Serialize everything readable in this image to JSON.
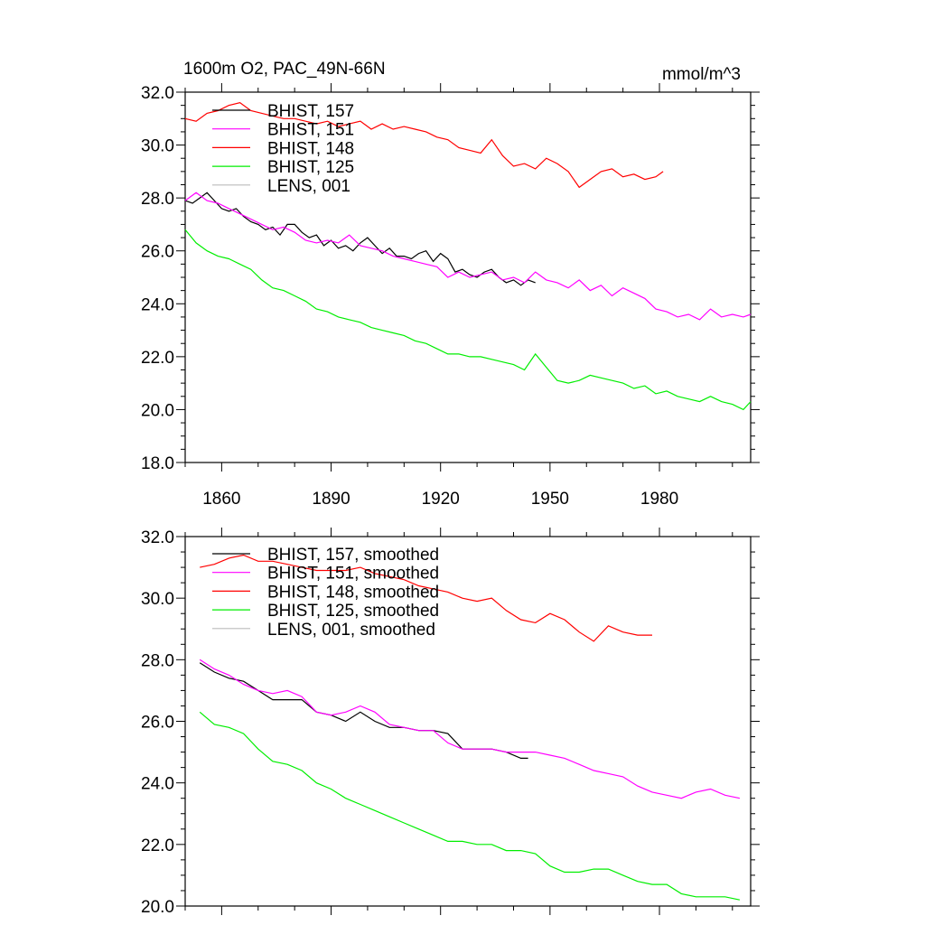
{
  "header": {
    "title_left": "1600m O2, PAC_49N-66N",
    "title_right": "mmol/m^3"
  },
  "chart_data": [
    {
      "type": "line",
      "panel": "raw",
      "xlim": [
        1850,
        2005
      ],
      "ylim": [
        18.0,
        32.0
      ],
      "x_ticks": [
        1860,
        1890,
        1920,
        1950,
        1980
      ],
      "x_tick_labels": [
        "1860",
        "1890",
        "1920",
        "1950",
        "1980"
      ],
      "y_ticks": [
        18.0,
        20.0,
        22.0,
        24.0,
        26.0,
        28.0,
        30.0,
        32.0
      ],
      "y_tick_labels": [
        "18.0",
        "20.0",
        "22.0",
        "24.0",
        "26.0",
        "28.0",
        "30.0",
        "32.0"
      ],
      "legend_position": "top-left",
      "series": [
        {
          "name": "BHIST, 157",
          "color": "#000000",
          "x": [
            1850,
            1852,
            1854,
            1856,
            1858,
            1860,
            1862,
            1864,
            1866,
            1868,
            1870,
            1872,
            1874,
            1876,
            1878,
            1880,
            1882,
            1884,
            1886,
            1888,
            1890,
            1892,
            1894,
            1896,
            1898,
            1900,
            1902,
            1904,
            1906,
            1908,
            1910,
            1912,
            1914,
            1916,
            1918,
            1920,
            1922,
            1924,
            1926,
            1928,
            1930,
            1932,
            1934,
            1936,
            1938,
            1940,
            1942,
            1944,
            1946
          ],
          "values": [
            27.9,
            27.8,
            28.0,
            28.2,
            27.9,
            27.6,
            27.5,
            27.6,
            27.3,
            27.1,
            27.0,
            26.8,
            26.9,
            26.6,
            27.0,
            27.0,
            26.7,
            26.5,
            26.6,
            26.2,
            26.4,
            26.1,
            26.2,
            26.0,
            26.3,
            26.5,
            26.2,
            25.9,
            26.1,
            25.8,
            25.8,
            25.7,
            25.9,
            26.0,
            25.6,
            25.9,
            25.7,
            25.2,
            25.3,
            25.1,
            25.0,
            25.2,
            25.3,
            25.0,
            24.8,
            24.9,
            24.7,
            24.9,
            24.8
          ]
        },
        {
          "name": "BHIST, 151",
          "color": "#ff00ff",
          "x": [
            1850,
            1853,
            1856,
            1859,
            1862,
            1865,
            1868,
            1871,
            1874,
            1877,
            1880,
            1883,
            1886,
            1889,
            1892,
            1895,
            1898,
            1901,
            1904,
            1907,
            1910,
            1913,
            1916,
            1919,
            1922,
            1925,
            1928,
            1931,
            1934,
            1937,
            1940,
            1943,
            1946,
            1949,
            1952,
            1955,
            1958,
            1961,
            1964,
            1967,
            1970,
            1973,
            1976,
            1979,
            1982,
            1985,
            1988,
            1991,
            1994,
            1997,
            2000,
            2003,
            2005
          ],
          "values": [
            27.9,
            28.2,
            27.9,
            27.8,
            27.6,
            27.4,
            27.2,
            27.0,
            26.8,
            26.9,
            26.7,
            26.4,
            26.3,
            26.4,
            26.3,
            26.6,
            26.2,
            26.1,
            26.0,
            25.8,
            25.7,
            25.6,
            25.5,
            25.4,
            25.0,
            25.2,
            25.0,
            25.1,
            25.2,
            24.9,
            25.0,
            24.8,
            25.2,
            24.9,
            24.8,
            24.6,
            24.9,
            24.5,
            24.7,
            24.3,
            24.6,
            24.4,
            24.2,
            23.8,
            23.7,
            23.5,
            23.6,
            23.4,
            23.8,
            23.5,
            23.6,
            23.5,
            23.6
          ]
        },
        {
          "name": "BHIST, 148",
          "color": "#ff0000",
          "x": [
            1850,
            1853,
            1856,
            1859,
            1862,
            1865,
            1868,
            1871,
            1874,
            1877,
            1880,
            1883,
            1886,
            1889,
            1892,
            1895,
            1898,
            1901,
            1904,
            1907,
            1910,
            1913,
            1916,
            1919,
            1922,
            1925,
            1928,
            1931,
            1934,
            1937,
            1940,
            1943,
            1946,
            1949,
            1952,
            1955,
            1958,
            1961,
            1964,
            1967,
            1970,
            1973,
            1976,
            1979,
            1981
          ],
          "values": [
            31.0,
            30.9,
            31.2,
            31.3,
            31.5,
            31.6,
            31.3,
            31.2,
            31.1,
            31.0,
            31.0,
            30.9,
            30.8,
            30.9,
            30.7,
            30.8,
            30.9,
            30.6,
            30.8,
            30.6,
            30.7,
            30.6,
            30.5,
            30.3,
            30.2,
            29.9,
            29.8,
            29.7,
            30.2,
            29.6,
            29.2,
            29.3,
            29.1,
            29.5,
            29.3,
            29.0,
            28.4,
            28.7,
            29.0,
            29.1,
            28.8,
            28.9,
            28.7,
            28.8,
            29.0
          ]
        },
        {
          "name": "BHIST, 125",
          "color": "#00ee00",
          "x": [
            1850,
            1853,
            1856,
            1859,
            1862,
            1865,
            1868,
            1871,
            1874,
            1877,
            1880,
            1883,
            1886,
            1889,
            1892,
            1895,
            1898,
            1901,
            1904,
            1907,
            1910,
            1913,
            1916,
            1919,
            1922,
            1925,
            1928,
            1931,
            1934,
            1937,
            1940,
            1943,
            1946,
            1949,
            1952,
            1955,
            1958,
            1961,
            1964,
            1967,
            1970,
            1973,
            1976,
            1979,
            1982,
            1985,
            1988,
            1991,
            1994,
            1997,
            2000,
            2003,
            2005
          ],
          "values": [
            26.8,
            26.3,
            26.0,
            25.8,
            25.7,
            25.5,
            25.3,
            24.9,
            24.6,
            24.5,
            24.3,
            24.1,
            23.8,
            23.7,
            23.5,
            23.4,
            23.3,
            23.1,
            23.0,
            22.9,
            22.8,
            22.6,
            22.5,
            22.3,
            22.1,
            22.1,
            22.0,
            22.0,
            21.9,
            21.8,
            21.7,
            21.5,
            22.1,
            21.6,
            21.1,
            21.0,
            21.1,
            21.3,
            21.2,
            21.1,
            21.0,
            20.8,
            20.9,
            20.6,
            20.7,
            20.5,
            20.4,
            20.3,
            20.5,
            20.3,
            20.2,
            20.0,
            20.3
          ]
        },
        {
          "name": "LENS, 001",
          "color": "#bbbbbb",
          "x": [],
          "values": []
        }
      ]
    },
    {
      "type": "line",
      "panel": "smoothed",
      "xlim": [
        1850,
        2005
      ],
      "ylim": [
        20.0,
        32.0
      ],
      "x_ticks": [
        1860,
        1890,
        1920,
        1950,
        1980
      ],
      "x_tick_labels": [],
      "y_ticks": [
        20.0,
        22.0,
        24.0,
        26.0,
        28.0,
        30.0,
        32.0
      ],
      "y_tick_labels": [
        "20.0",
        "22.0",
        "24.0",
        "26.0",
        "28.0",
        "30.0",
        "32.0"
      ],
      "legend_position": "top-left",
      "series": [
        {
          "name": "BHIST, 157, smoothed",
          "color": "#000000",
          "x": [
            1854,
            1858,
            1862,
            1866,
            1870,
            1874,
            1878,
            1882,
            1886,
            1890,
            1894,
            1898,
            1902,
            1906,
            1910,
            1914,
            1918,
            1922,
            1926,
            1930,
            1934,
            1938,
            1942,
            1944
          ],
          "values": [
            27.9,
            27.6,
            27.4,
            27.3,
            27.0,
            26.7,
            26.7,
            26.7,
            26.3,
            26.2,
            26.0,
            26.3,
            26.0,
            25.8,
            25.8,
            25.7,
            25.7,
            25.6,
            25.1,
            25.1,
            25.1,
            25.0,
            24.8,
            24.8
          ]
        },
        {
          "name": "BHIST, 151, smoothed",
          "color": "#ff00ff",
          "x": [
            1854,
            1858,
            1862,
            1866,
            1870,
            1874,
            1878,
            1882,
            1886,
            1890,
            1894,
            1898,
            1902,
            1906,
            1910,
            1914,
            1918,
            1922,
            1926,
            1930,
            1934,
            1938,
            1942,
            1946,
            1950,
            1954,
            1958,
            1962,
            1966,
            1970,
            1974,
            1978,
            1982,
            1986,
            1990,
            1994,
            1998,
            2002
          ],
          "values": [
            28.0,
            27.7,
            27.5,
            27.2,
            27.0,
            26.9,
            27.0,
            26.8,
            26.3,
            26.2,
            26.3,
            26.5,
            26.3,
            25.9,
            25.8,
            25.7,
            25.7,
            25.3,
            25.1,
            25.1,
            25.1,
            25.0,
            25.0,
            25.0,
            24.9,
            24.8,
            24.6,
            24.4,
            24.3,
            24.2,
            23.9,
            23.7,
            23.6,
            23.5,
            23.7,
            23.8,
            23.6,
            23.5
          ]
        },
        {
          "name": "BHIST, 148, smoothed",
          "color": "#ff0000",
          "x": [
            1854,
            1858,
            1862,
            1866,
            1870,
            1874,
            1878,
            1882,
            1886,
            1890,
            1894,
            1898,
            1902,
            1906,
            1910,
            1914,
            1918,
            1922,
            1926,
            1930,
            1934,
            1938,
            1942,
            1946,
            1950,
            1954,
            1958,
            1962,
            1966,
            1970,
            1974,
            1978
          ],
          "values": [
            31.0,
            31.1,
            31.3,
            31.4,
            31.2,
            31.2,
            31.1,
            31.0,
            30.9,
            30.9,
            30.9,
            31.0,
            30.8,
            30.7,
            30.6,
            30.4,
            30.3,
            30.2,
            30.0,
            29.9,
            30.0,
            29.6,
            29.3,
            29.2,
            29.5,
            29.3,
            28.9,
            28.6,
            29.1,
            28.9,
            28.8,
            28.8
          ]
        },
        {
          "name": "BHIST, 125, smoothed",
          "color": "#00ee00",
          "x": [
            1854,
            1858,
            1862,
            1866,
            1870,
            1874,
            1878,
            1882,
            1886,
            1890,
            1894,
            1898,
            1902,
            1906,
            1910,
            1914,
            1918,
            1922,
            1926,
            1930,
            1934,
            1938,
            1942,
            1946,
            1950,
            1954,
            1958,
            1962,
            1966,
            1970,
            1974,
            1978,
            1982,
            1986,
            1990,
            1994,
            1998,
            2002
          ],
          "values": [
            26.3,
            25.9,
            25.8,
            25.6,
            25.1,
            24.7,
            24.6,
            24.4,
            24.0,
            23.8,
            23.5,
            23.3,
            23.1,
            22.9,
            22.7,
            22.5,
            22.3,
            22.1,
            22.1,
            22.0,
            22.0,
            21.8,
            21.8,
            21.7,
            21.3,
            21.1,
            21.1,
            21.2,
            21.2,
            21.0,
            20.8,
            20.7,
            20.7,
            20.4,
            20.3,
            20.3,
            20.3,
            20.2
          ]
        },
        {
          "name": "LENS, 001, smoothed",
          "color": "#bbbbbb",
          "x": [],
          "values": []
        }
      ]
    }
  ]
}
